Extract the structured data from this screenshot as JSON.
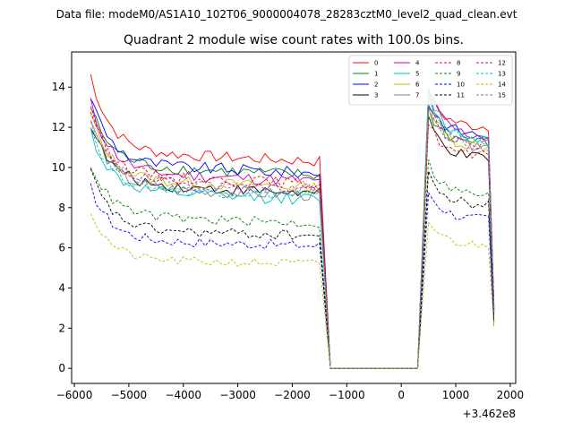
{
  "header": {
    "suptitle": "Data file: modeM0/AS1A10_102T06_9000004078_28283cztM0_level2_quad_clean.evt"
  },
  "chart_data": {
    "type": "line",
    "title": "Quadrant 2 module wise count rates with 100.0s bins.",
    "xlabel": "",
    "ylabel": "",
    "offset_label": "+3.462e8",
    "xlim": [
      -6050,
      2100
    ],
    "ylim": [
      -0.75,
      15.75
    ],
    "xticks": [
      -6000,
      -5000,
      -4000,
      -3000,
      -2000,
      -1000,
      0,
      1000,
      2000
    ],
    "xtick_labels": [
      "−6000",
      "−5000",
      "−4000",
      "−3000",
      "−2000",
      "−1000",
      "0",
      "1000",
      "2000"
    ],
    "yticks": [
      0,
      2,
      4,
      6,
      8,
      10,
      12,
      14
    ],
    "ytick_labels": [
      "0",
      "2",
      "4",
      "6",
      "8",
      "10",
      "12",
      "14"
    ],
    "grid": false,
    "legend_position": "top-right",
    "segments": [
      {
        "name": "before-gap",
        "x_start": -5700,
        "x_end": -1500,
        "step": 100,
        "decay": 0.28
      },
      {
        "name": "gap",
        "x_start": -1300,
        "x_end": 300,
        "step": 100,
        "value": 0
      },
      {
        "name": "after-gap",
        "x_start": 500,
        "x_end": 1600,
        "step": 100,
        "decay": 0.18
      }
    ],
    "series": [
      {
        "name": "0",
        "color": "#ff0000",
        "style": "solid",
        "start_level": 14.6,
        "plateau": 10.8,
        "end_level": 10.3,
        "post_peak": 13.6,
        "post_end": 12.0,
        "final": 3.2,
        "noise": 0.28
      },
      {
        "name": "1",
        "color": "#008000",
        "style": "solid",
        "start_level": 13.0,
        "plateau": 10.1,
        "end_level": 9.6,
        "post_peak": 12.8,
        "post_end": 11.2,
        "final": 3.0,
        "noise": 0.3
      },
      {
        "name": "2",
        "color": "#0000ff",
        "style": "solid",
        "start_level": 13.6,
        "plateau": 10.2,
        "end_level": 9.7,
        "post_peak": 13.2,
        "post_end": 11.6,
        "final": 3.1,
        "noise": 0.3
      },
      {
        "name": "3",
        "color": "#000000",
        "style": "solid",
        "start_level": 12.2,
        "plateau": 9.2,
        "end_level": 8.7,
        "post_peak": 12.4,
        "post_end": 10.4,
        "final": 2.9,
        "noise": 0.28
      },
      {
        "name": "4",
        "color": "#bf00bf",
        "style": "solid",
        "start_level": 13.2,
        "plateau": 9.8,
        "end_level": 9.3,
        "post_peak": 13.9,
        "post_end": 11.5,
        "final": 3.0,
        "noise": 0.3
      },
      {
        "name": "5",
        "color": "#00bfbf",
        "style": "solid",
        "start_level": 11.8,
        "plateau": 8.8,
        "end_level": 8.4,
        "post_peak": 13.8,
        "post_end": 11.4,
        "final": 2.8,
        "noise": 0.3
      },
      {
        "name": "6",
        "color": "#bfbf00",
        "style": "solid",
        "start_level": 12.6,
        "plateau": 9.4,
        "end_level": 9.0,
        "post_peak": 13.0,
        "post_end": 11.0,
        "final": 2.9,
        "noise": 0.3
      },
      {
        "name": "7",
        "color": "#808080",
        "style": "solid",
        "start_level": 12.4,
        "plateau": 9.0,
        "end_level": 8.6,
        "post_peak": 13.4,
        "post_end": 11.0,
        "final": 2.8,
        "noise": 0.3
      },
      {
        "name": "8",
        "color": "#ff0000",
        "style": "dashed",
        "start_level": 12.9,
        "plateau": 9.6,
        "end_level": 9.2,
        "post_peak": 12.2,
        "post_end": 10.5,
        "final": 2.7,
        "noise": 0.28
      },
      {
        "name": "9",
        "color": "#008000",
        "style": "dashed",
        "start_level": 10.2,
        "plateau": 7.6,
        "end_level": 7.2,
        "post_peak": 10.2,
        "post_end": 8.6,
        "final": 2.4,
        "noise": 0.25
      },
      {
        "name": "10",
        "color": "#0000ff",
        "style": "dashed",
        "start_level": 9.0,
        "plateau": 6.4,
        "end_level": 6.1,
        "post_peak": 8.8,
        "post_end": 7.4,
        "final": 2.2,
        "noise": 0.25
      },
      {
        "name": "11",
        "color": "#000000",
        "style": "dashed",
        "start_level": 9.8,
        "plateau": 6.9,
        "end_level": 6.6,
        "post_peak": 9.6,
        "post_end": 8.1,
        "final": 2.3,
        "noise": 0.25
      },
      {
        "name": "12",
        "color": "#bf00bf",
        "style": "dashed",
        "start_level": 13.0,
        "plateau": 9.3,
        "end_level": 8.9,
        "post_peak": 13.0,
        "post_end": 11.1,
        "final": 2.9,
        "noise": 0.28
      },
      {
        "name": "13",
        "color": "#00bfbf",
        "style": "dashed",
        "start_level": 12.0,
        "plateau": 9.0,
        "end_level": 8.6,
        "post_peak": 13.5,
        "post_end": 11.3,
        "final": 2.8,
        "noise": 0.28
      },
      {
        "name": "14",
        "color": "#bfbf00",
        "style": "dashed",
        "start_level": 7.8,
        "plateau": 5.4,
        "end_level": 5.2,
        "post_peak": 7.3,
        "post_end": 6.1,
        "final": 2.0,
        "noise": 0.22
      },
      {
        "name": "15",
        "color": "#808080",
        "style": "dashed",
        "start_level": 12.5,
        "plateau": 9.3,
        "end_level": 8.9,
        "post_peak": 12.9,
        "post_end": 11.0,
        "final": 2.8,
        "noise": 0.28
      }
    ]
  }
}
